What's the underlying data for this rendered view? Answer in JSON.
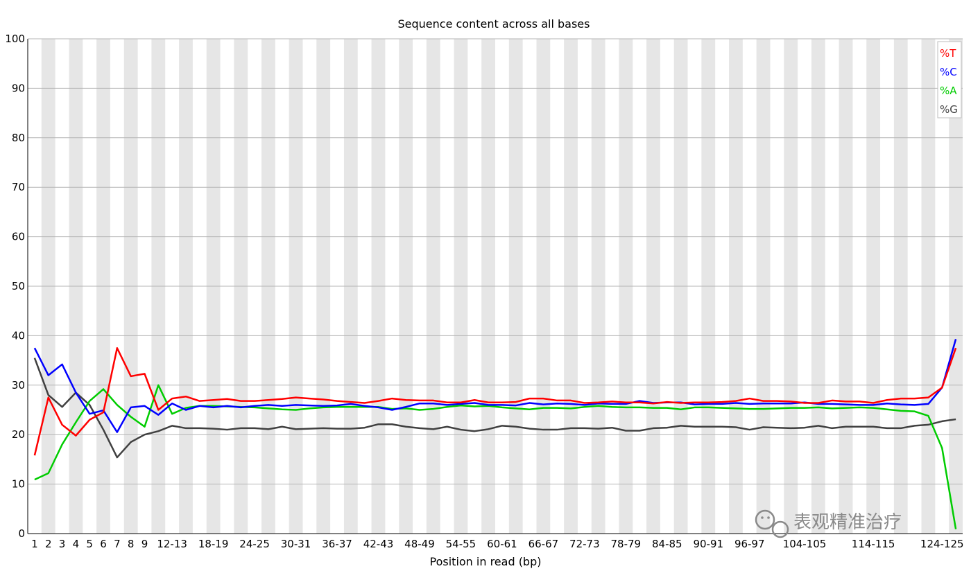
{
  "chart_data": {
    "type": "line",
    "title": "Sequence content across all bases",
    "xlabel": "Position in read (bp)",
    "ylabel": "",
    "ylim": [
      0,
      100
    ],
    "yticks": [
      0,
      10,
      20,
      30,
      40,
      50,
      60,
      70,
      80,
      90,
      100
    ],
    "grid": true,
    "legend_position": "top-right",
    "categories": [
      "1",
      "2",
      "3",
      "4",
      "5",
      "6",
      "7",
      "8",
      "9",
      "10-11",
      "12-13",
      "14-15",
      "16-17",
      "18-19",
      "20-21",
      "22-23",
      "24-25",
      "26-27",
      "28-29",
      "30-31",
      "32-33",
      "34-35",
      "36-37",
      "38-39",
      "40-41",
      "42-43",
      "44-45",
      "46-47",
      "48-49",
      "50-51",
      "52-53",
      "54-55",
      "56-57",
      "58-59",
      "60-61",
      "62-63",
      "64-65",
      "66-67",
      "68-69",
      "70-71",
      "72-73",
      "74-75",
      "76-77",
      "78-79",
      "80-81",
      "82-83",
      "84-85",
      "86-87",
      "88-89",
      "90-91",
      "92-93",
      "94-95",
      "96-97",
      "98-99",
      "100-101",
      "102-103",
      "104-105",
      "106-107",
      "108-109",
      "110-111",
      "112-113",
      "114-115",
      "116-117",
      "118-119",
      "120-121",
      "122-123",
      "124-125",
      "126"
    ],
    "tick_labels": [
      "1",
      "2",
      "3",
      "4",
      "5",
      "6",
      "7",
      "8",
      "9",
      "12-13",
      "18-19",
      "24-25",
      "30-31",
      "36-37",
      "42-43",
      "48-49",
      "54-55",
      "60-61",
      "66-67",
      "72-73",
      "78-79",
      "84-85",
      "90-91",
      "96-97",
      "104-105",
      "114-115",
      "124-125"
    ],
    "series": [
      {
        "name": "%T",
        "color": "#ff0000",
        "values": [
          15.8,
          27.5,
          22.0,
          19.8,
          23.0,
          24.5,
          37.5,
          31.8,
          32.3,
          25.0,
          27.3,
          27.7,
          26.8,
          27.0,
          27.2,
          26.8,
          26.8,
          27.0,
          27.2,
          27.5,
          27.3,
          27.1,
          26.8,
          26.6,
          26.4,
          26.8,
          27.3,
          27.0,
          26.9,
          26.9,
          26.5,
          26.5,
          27.0,
          26.5,
          26.5,
          26.6,
          27.3,
          27.3,
          26.9,
          26.9,
          26.4,
          26.5,
          26.7,
          26.5,
          26.5,
          26.3,
          26.6,
          26.4,
          26.5,
          26.5,
          26.6,
          26.8,
          27.3,
          26.8,
          26.8,
          26.7,
          26.4,
          26.4,
          26.9,
          26.7,
          26.7,
          26.4,
          27.0,
          27.3,
          27.3,
          27.5,
          29.5,
          37.5
        ]
      },
      {
        "name": "%C",
        "color": "#0000ff",
        "values": [
          37.5,
          32.0,
          34.2,
          28.5,
          24.2,
          24.9,
          20.5,
          25.5,
          25.8,
          24.0,
          26.3,
          25.0,
          25.8,
          25.5,
          25.8,
          25.5,
          25.8,
          26.0,
          25.8,
          26.0,
          25.9,
          25.8,
          25.9,
          26.2,
          25.8,
          25.5,
          25.0,
          25.6,
          26.3,
          26.3,
          26.0,
          26.2,
          26.4,
          26.0,
          26.0,
          25.9,
          26.4,
          26.1,
          26.3,
          26.2,
          26.0,
          26.3,
          26.2,
          26.2,
          26.8,
          26.4,
          26.5,
          26.5,
          26.1,
          26.2,
          26.2,
          26.4,
          26.2,
          26.3,
          26.3,
          26.3,
          26.5,
          26.2,
          26.2,
          26.1,
          26.0,
          26.0,
          26.3,
          26.1,
          26.0,
          26.2,
          29.5,
          39.3
        ]
      },
      {
        "name": "%A",
        "color": "#00cc00",
        "values": [
          10.9,
          12.2,
          18.0,
          22.5,
          26.8,
          29.2,
          26.0,
          23.6,
          21.6,
          30.0,
          24.2,
          25.4,
          25.8,
          25.8,
          25.7,
          25.6,
          25.5,
          25.3,
          25.1,
          25.0,
          25.3,
          25.5,
          25.6,
          25.6,
          25.6,
          25.6,
          25.2,
          25.3,
          25.0,
          25.2,
          25.6,
          25.9,
          25.7,
          25.8,
          25.5,
          25.3,
          25.1,
          25.4,
          25.4,
          25.3,
          25.6,
          25.8,
          25.6,
          25.5,
          25.5,
          25.4,
          25.4,
          25.1,
          25.5,
          25.5,
          25.4,
          25.3,
          25.2,
          25.2,
          25.3,
          25.4,
          25.4,
          25.5,
          25.3,
          25.4,
          25.5,
          25.4,
          25.1,
          24.8,
          24.7,
          23.8,
          17.3,
          0.9
        ]
      },
      {
        "name": "%G",
        "color": "#404040",
        "values": [
          35.5,
          28.0,
          25.6,
          28.5,
          26.0,
          21.0,
          15.4,
          18.5,
          20.0,
          20.7,
          21.8,
          21.3,
          21.3,
          21.2,
          21.0,
          21.3,
          21.3,
          21.1,
          21.6,
          21.1,
          21.2,
          21.3,
          21.2,
          21.2,
          21.4,
          22.1,
          22.1,
          21.6,
          21.3,
          21.1,
          21.6,
          21.0,
          20.7,
          21.1,
          21.8,
          21.6,
          21.2,
          21.0,
          21.0,
          21.3,
          21.3,
          21.2,
          21.4,
          20.8,
          20.8,
          21.3,
          21.4,
          21.8,
          21.6,
          21.6,
          21.6,
          21.5,
          21.0,
          21.5,
          21.4,
          21.3,
          21.4,
          21.8,
          21.3,
          21.6,
          21.6,
          21.6,
          21.3,
          21.3,
          21.8,
          22.0,
          22.7,
          23.1
        ]
      }
    ]
  },
  "watermark": {
    "text": "表观精准治疗",
    "icon": "chat-bubbles-icon"
  }
}
